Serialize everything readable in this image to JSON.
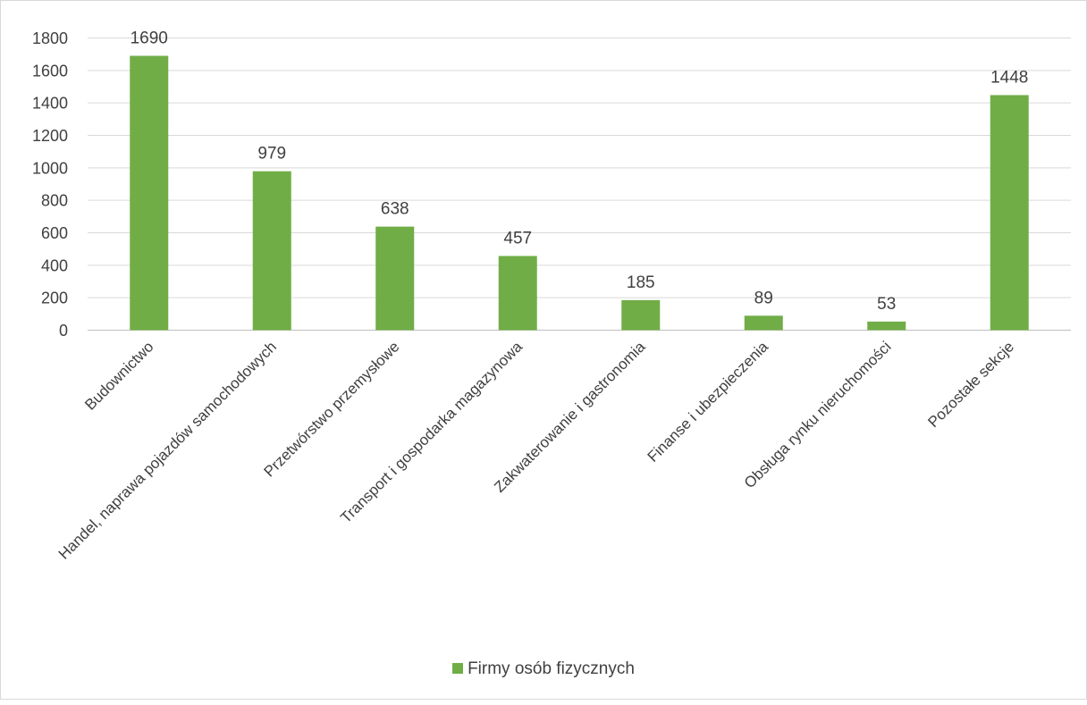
{
  "chart_data": {
    "type": "bar",
    "categories": [
      "Budownictwo",
      "Handel, naprawa pojazdów samochodowych",
      "Przetwórstwo przemysłowe",
      "Transport i gospodarka magazynowa",
      "Zakwaterowanie i gastronomia",
      "Finanse i ubezpieczenia",
      "Obsługa rynku nieruchomości",
      "Pozostałe sekcje"
    ],
    "series": [
      {
        "name": "Firmy osób fizycznych",
        "values": [
          1690,
          979,
          638,
          457,
          185,
          89,
          53,
          1448
        ],
        "color": "#70ad47"
      }
    ],
    "title": "",
    "xlabel": "",
    "ylabel": "",
    "ylim": [
      0,
      1800
    ],
    "yticks": [
      0,
      200,
      400,
      600,
      800,
      1000,
      1200,
      1400,
      1600,
      1800
    ],
    "grid": true,
    "data_labels": true,
    "legend": "bottom"
  }
}
